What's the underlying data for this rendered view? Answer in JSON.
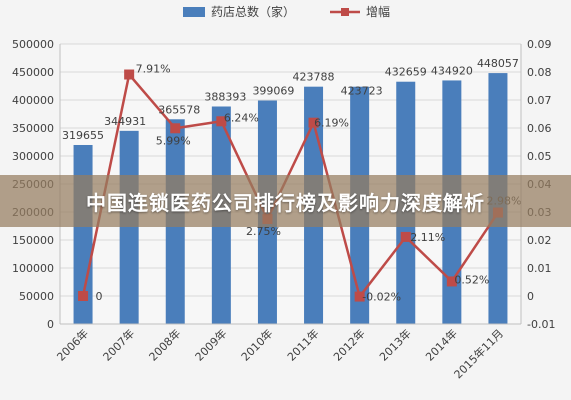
{
  "overlay": {
    "title": "中国连锁医药公司排行榜及影响力深度解析"
  },
  "colors": {
    "bar": "#4a7ebb",
    "line": "#be4b48",
    "grid": "#d9d9d9",
    "text": "#404040"
  },
  "chart_data": {
    "type": "bar",
    "categories": [
      "2006年",
      "2007年",
      "2008年",
      "2009年",
      "2010年",
      "2011年",
      "2012年",
      "2013年",
      "2014年",
      "2015年11月"
    ],
    "series": [
      {
        "name": "药店总数（家）",
        "type": "bar",
        "axis": "left",
        "values": [
          319655,
          344931,
          365578,
          388393,
          399069,
          423788,
          423723,
          432659,
          434920,
          448057
        ],
        "labels": [
          "319655",
          "344931",
          "365578",
          "388393",
          "399069",
          "423788",
          "423723",
          "432659",
          "434920",
          "448057"
        ]
      },
      {
        "name": "增幅",
        "type": "line",
        "axis": "right",
        "values": [
          0,
          0.0791,
          0.0599,
          0.0624,
          0.0275,
          0.0619,
          -0.0002,
          0.0211,
          0.0052,
          0.0298
        ],
        "labels": [
          "0",
          "7.91%",
          "5.99%",
          "6.24%",
          "2.75%",
          "6.19%",
          "-0.02%",
          "2.11%",
          "0.52%",
          "2.98%"
        ]
      }
    ],
    "y_left": {
      "min": 0,
      "max": 500000,
      "ticks": [
        "0",
        "50000",
        "100000",
        "150000",
        "200000",
        "250000",
        "300000",
        "350000",
        "400000",
        "450000",
        "500000"
      ]
    },
    "y_right": {
      "min": -0.01,
      "max": 0.09,
      "ticks": [
        "-0.01",
        "0",
        "0.01",
        "0.02",
        "0.03",
        "0.04",
        "0.05",
        "0.06",
        "0.07",
        "0.08",
        "0.09"
      ]
    },
    "legend": {
      "position": "top"
    },
    "grid": true
  }
}
